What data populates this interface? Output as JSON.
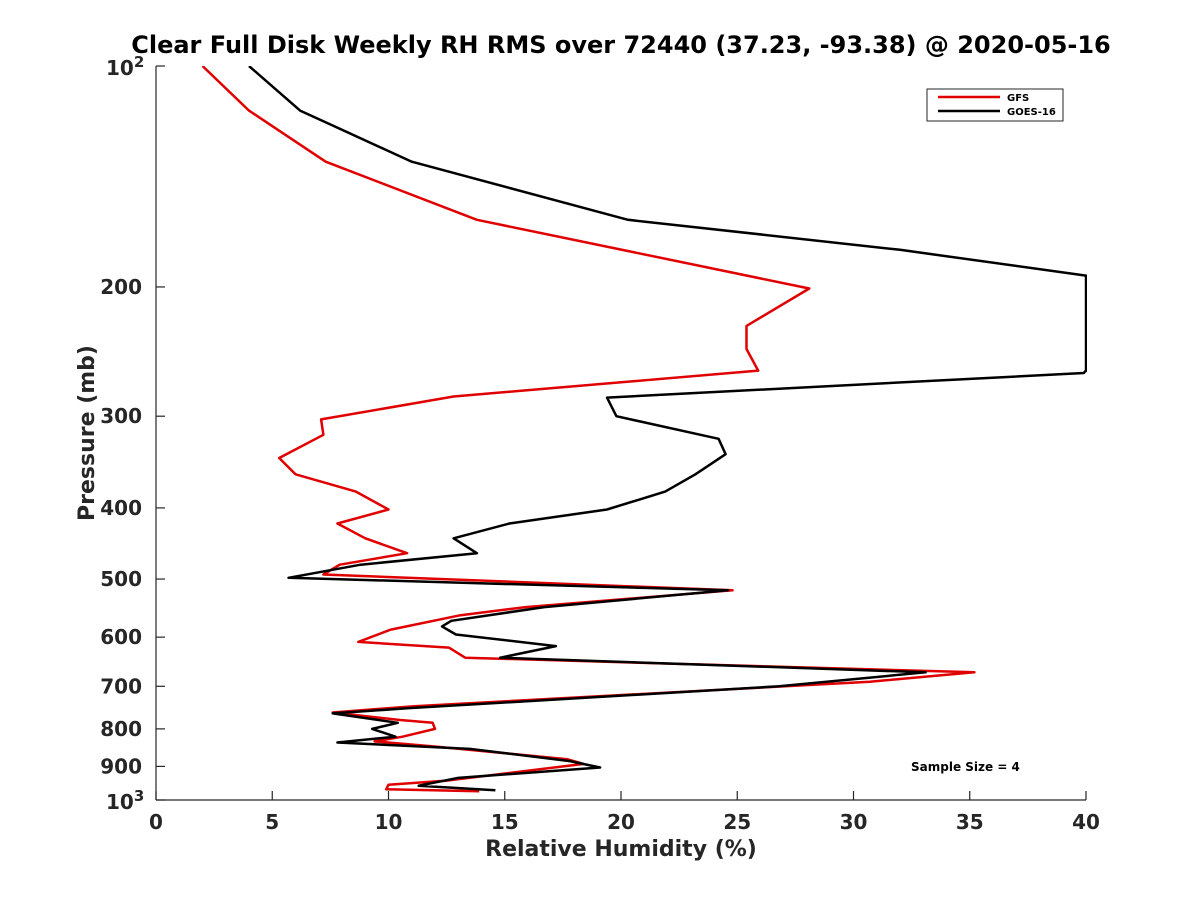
{
  "chart_data": {
    "type": "line",
    "title": "Clear Full Disk Weekly RH RMS over 72440 (37.23, -93.38) @ 2020-05-16",
    "xlabel": "Relative Humidity (%)",
    "ylabel": "Pressure (mb)",
    "xlim": [
      0,
      40
    ],
    "ylim": [
      100,
      1000
    ],
    "y_scale": "log",
    "y_reversed": true,
    "grid": false,
    "legend_position": "top-right",
    "x_ticks": [
      0,
      5,
      10,
      15,
      20,
      25,
      30,
      35,
      40
    ],
    "x_tick_labels": [
      "0",
      "5",
      "10",
      "15",
      "20",
      "25",
      "30",
      "35",
      "40"
    ],
    "y_ticks": [
      100,
      200,
      300,
      400,
      500,
      600,
      700,
      800,
      900,
      1000
    ],
    "y_tick_labels": [
      {
        "base": "10",
        "exp": "2"
      },
      {
        "base": "200",
        "exp": ""
      },
      {
        "base": "300",
        "exp": ""
      },
      {
        "base": "400",
        "exp": ""
      },
      {
        "base": "500",
        "exp": ""
      },
      {
        "base": "600",
        "exp": ""
      },
      {
        "base": "700",
        "exp": ""
      },
      {
        "base": "800",
        "exp": ""
      },
      {
        "base": "900",
        "exp": ""
      },
      {
        "base": "10",
        "exp": "3"
      }
    ],
    "series": [
      {
        "name": "GFS",
        "color": "#e00000",
        "points": [
          [
            2.0,
            100
          ],
          [
            4.0,
            115
          ],
          [
            7.3,
            135
          ],
          [
            13.8,
            162
          ],
          [
            28.1,
            201
          ],
          [
            25.4,
            226
          ],
          [
            25.4,
            243
          ],
          [
            25.9,
            260
          ],
          [
            12.8,
            282
          ],
          [
            7.1,
            303
          ],
          [
            7.2,
            318
          ],
          [
            5.3,
            342
          ],
          [
            6.0,
            360
          ],
          [
            8.6,
            380
          ],
          [
            10.0,
            402
          ],
          [
            7.8,
            420
          ],
          [
            9.0,
            440
          ],
          [
            10.8,
            461
          ],
          [
            7.9,
            478
          ],
          [
            7.2,
            493
          ],
          [
            24.8,
            518
          ],
          [
            15.9,
            546
          ],
          [
            13.1,
            560
          ],
          [
            10.1,
            586
          ],
          [
            8.7,
            609
          ],
          [
            12.6,
            620
          ],
          [
            13.3,
            640
          ],
          [
            35.2,
            670
          ],
          [
            30.7,
            690
          ],
          [
            11.1,
            745
          ],
          [
            7.6,
            760
          ],
          [
            10.5,
            778
          ],
          [
            11.9,
            785
          ],
          [
            12.0,
            800
          ],
          [
            10.6,
            820
          ],
          [
            9.4,
            832
          ],
          [
            12.1,
            846
          ],
          [
            17.7,
            880
          ],
          [
            18.4,
            893
          ],
          [
            12.5,
            941
          ],
          [
            10.0,
            953
          ],
          [
            9.9,
            967
          ],
          [
            13.9,
            973
          ]
        ]
      },
      {
        "name": "GOES-16",
        "color": "#000000",
        "points": [
          [
            4.0,
            100
          ],
          [
            6.2,
            115
          ],
          [
            11.0,
            135
          ],
          [
            20.3,
            162
          ],
          [
            32.0,
            178
          ],
          [
            40.0,
            193
          ],
          [
            40.0,
            260
          ],
          [
            39.9,
            262
          ],
          [
            19.4,
            283
          ],
          [
            19.8,
            300
          ],
          [
            24.2,
            322
          ],
          [
            24.5,
            338
          ],
          [
            23.2,
            360
          ],
          [
            21.9,
            380
          ],
          [
            19.4,
            402
          ],
          [
            15.2,
            420
          ],
          [
            12.8,
            440
          ],
          [
            13.8,
            461
          ],
          [
            8.8,
            478
          ],
          [
            5.7,
            498
          ],
          [
            24.6,
            518
          ],
          [
            16.7,
            546
          ],
          [
            12.7,
            570
          ],
          [
            12.3,
            580
          ],
          [
            12.9,
            595
          ],
          [
            17.2,
            617
          ],
          [
            14.8,
            640
          ],
          [
            33.1,
            670
          ],
          [
            26.8,
            700
          ],
          [
            10.8,
            750
          ],
          [
            7.6,
            762
          ],
          [
            10.4,
            785
          ],
          [
            9.3,
            800
          ],
          [
            10.3,
            820
          ],
          [
            7.8,
            835
          ],
          [
            13.5,
            852
          ],
          [
            17.8,
            885
          ],
          [
            19.1,
            903
          ],
          [
            13.0,
            933
          ],
          [
            11.3,
            956
          ],
          [
            14.6,
            970
          ]
        ]
      }
    ],
    "annotations": [
      {
        "text": "Sample Size = 4"
      }
    ]
  }
}
